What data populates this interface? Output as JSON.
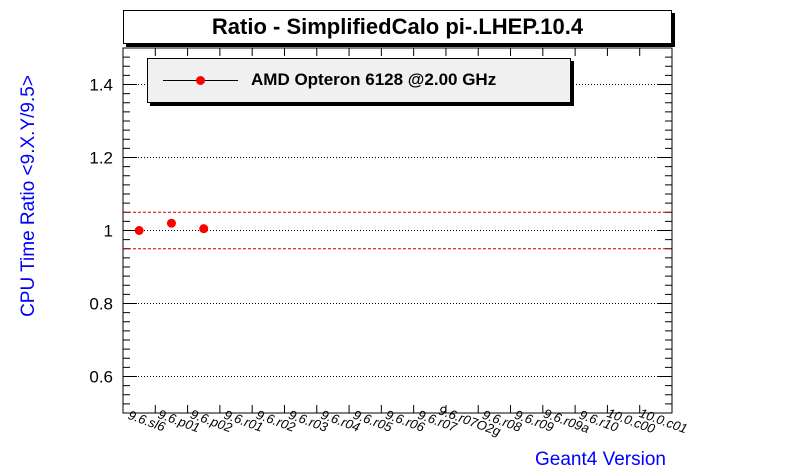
{
  "chart_data": {
    "type": "scatter",
    "title": "Ratio - SimplifiedCalo pi-.LHEP.10.4",
    "xlabel": "Geant4 Version",
    "ylabel": "CPU Time Ratio <9.X.Y/9.5>",
    "categories": [
      "9.6.sl6",
      "9.6.p01",
      "9.6.p02",
      "9.6.r01",
      "9.6.r02",
      "9.6.r03",
      "9.6.r04",
      "9.6.r05",
      "9.6.r06",
      "9.6.r07",
      "9.6.r07O2g",
      "9.6.r08",
      "9.6.r09",
      "9.6.r09a",
      "9.6.r10",
      "10.0.c00",
      "10.0.c01"
    ],
    "series": [
      {
        "name": "AMD Opteron 6128 @2.00 GHz",
        "color": "#ff0000",
        "values": [
          1.0,
          1.02,
          1.005
        ]
      }
    ],
    "ylim": [
      0.5,
      1.5
    ],
    "yticks": [
      0.6,
      0.8,
      1,
      1.2,
      1.4
    ],
    "reference_lines": [
      1.05,
      0.95
    ],
    "reference_color": "#cc0000",
    "grid": "horizontal dotted",
    "legend_position": "top-left"
  }
}
